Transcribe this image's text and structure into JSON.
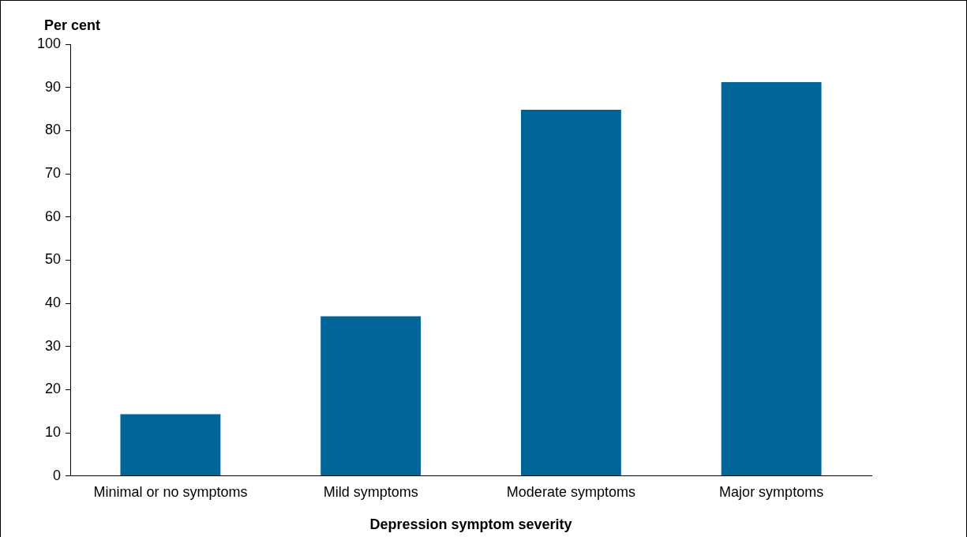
{
  "chart_data": {
    "type": "bar",
    "xlabel": "Depression symptom severity",
    "ylabel": "Per cent",
    "categories": [
      "Minimal or no symptoms",
      "Mild symptoms",
      "Moderate symptoms",
      "Major symptoms"
    ],
    "values": [
      14.3,
      37,
      84.8,
      91.2
    ],
    "color": "#006699",
    "ylim": [
      0,
      100
    ],
    "yticks": [
      0,
      10,
      20,
      30,
      40,
      50,
      60,
      70,
      80,
      90,
      100
    ],
    "grid": false,
    "legend": false
  }
}
